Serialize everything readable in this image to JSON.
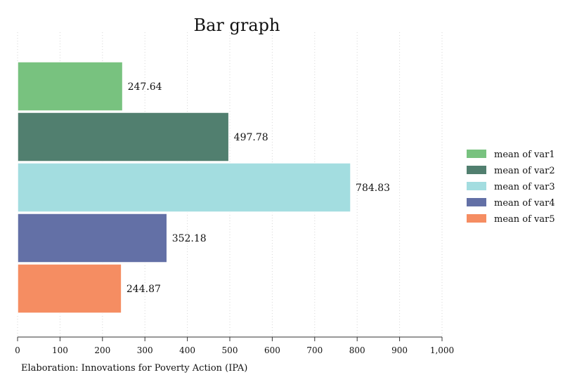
{
  "chart_data": {
    "type": "bar",
    "orientation": "horizontal",
    "title": "Bar graph",
    "note": "Elaboration: Innovations for Poverty Action (IPA)",
    "xlim": [
      0,
      1000
    ],
    "x_ticks": [
      0,
      100,
      200,
      300,
      400,
      500,
      600,
      700,
      800,
      900,
      1000
    ],
    "x_tick_labels": [
      "0",
      "100",
      "200",
      "300",
      "400",
      "500",
      "600",
      "700",
      "800",
      "900",
      "1,000"
    ],
    "grid": "vertical dotted",
    "legend_position": "right",
    "series": [
      {
        "name": "mean of var1",
        "value": 247.64,
        "label": "247.64",
        "color": "#78c27f"
      },
      {
        "name": "mean of var2",
        "value": 497.78,
        "label": "497.78",
        "color": "#517f6f"
      },
      {
        "name": "mean of var3",
        "value": 784.83,
        "label": "784.83",
        "color": "#a3dde0"
      },
      {
        "name": "mean of var4",
        "value": 352.18,
        "label": "352.18",
        "color": "#6370a6"
      },
      {
        "name": "mean of var5",
        "value": 244.87,
        "label": "244.87",
        "color": "#f58d62"
      }
    ]
  }
}
